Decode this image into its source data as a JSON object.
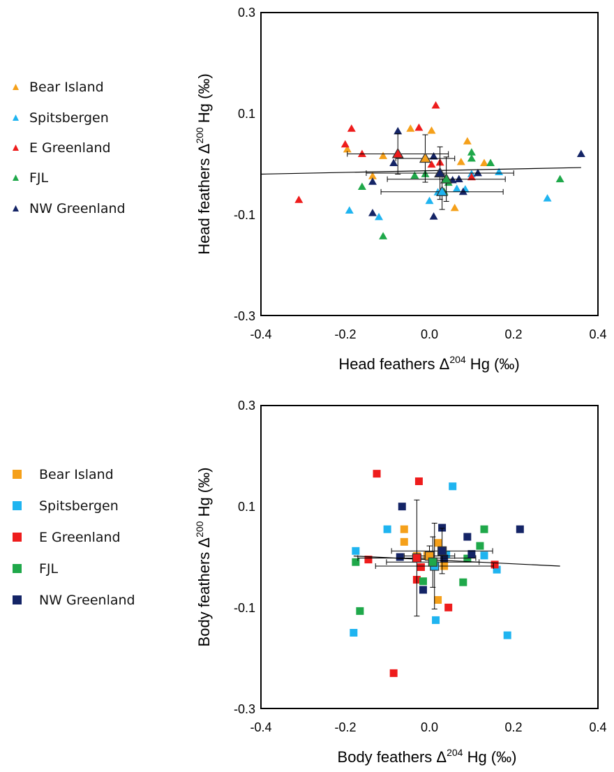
{
  "chart_data": [
    {
      "type": "scatter",
      "marker": "triangle",
      "xlabel": {
        "main": "Head feathers Δ",
        "sup": "204",
        "tail": " Hg (‰)"
      },
      "ylabel": {
        "main": "Head feathers Δ",
        "sup": "200",
        "tail": " Hg (‰)"
      },
      "xlim": [
        -0.4,
        0.4
      ],
      "ylim": [
        -0.3,
        0.3
      ],
      "xticks": [
        "-0.4",
        "-0.2",
        "0.0",
        "0.2",
        "0.4"
      ],
      "yticks": [
        "-0.3",
        "-0.1",
        "0.1",
        "0.3"
      ],
      "xtick_values": [
        -0.4,
        -0.2,
        0.0,
        0.2,
        0.4
      ],
      "ytick_values": [
        -0.3,
        -0.1,
        0.1,
        0.3
      ],
      "grid": false,
      "legend_position": "left",
      "trendline": [
        [
          -0.4,
          -0.02
        ],
        [
          0.36,
          -0.007
        ]
      ],
      "series": [
        {
          "name": "Bear Island",
          "color": "#f5a01a",
          "points": [
            [
              -0.195,
              0.029
            ],
            [
              -0.11,
              0.016
            ],
            [
              -0.045,
              0.07
            ],
            [
              0.005,
              0.066
            ],
            [
              0.09,
              0.045
            ],
            [
              0.075,
              0.004
            ],
            [
              0.13,
              0.002
            ],
            [
              -0.135,
              -0.024
            ],
            [
              0.06,
              -0.087
            ]
          ]
        },
        {
          "name": "Spitsbergen",
          "color": "#1fb4f0",
          "points": [
            [
              -0.19,
              -0.092
            ],
            [
              -0.12,
              -0.105
            ],
            [
              0.0,
              -0.073
            ],
            [
              0.02,
              -0.056
            ],
            [
              0.065,
              -0.049
            ],
            [
              0.085,
              -0.05
            ],
            [
              0.1,
              -0.02
            ],
            [
              0.165,
              -0.016
            ],
            [
              0.28,
              -0.068
            ]
          ]
        },
        {
          "name": "E Greenland",
          "color": "#ee1c1c",
          "points": [
            [
              -0.31,
              -0.071
            ],
            [
              -0.2,
              0.039
            ],
            [
              -0.185,
              0.07
            ],
            [
              -0.16,
              0.02
            ],
            [
              -0.025,
              0.072
            ],
            [
              0.015,
              0.116
            ],
            [
              0.025,
              0.003
            ],
            [
              0.005,
              -0.001
            ],
            [
              0.1,
              -0.026
            ]
          ]
        },
        {
          "name": "FJL",
          "color": "#1fa84a",
          "points": [
            [
              -0.16,
              -0.045
            ],
            [
              -0.11,
              -0.143
            ],
            [
              -0.035,
              -0.023
            ],
            [
              -0.01,
              -0.02
            ],
            [
              0.035,
              -0.055
            ],
            [
              0.045,
              -0.037
            ],
            [
              0.1,
              0.023
            ],
            [
              0.1,
              0.011
            ],
            [
              0.145,
              0.002
            ],
            [
              0.31,
              -0.03
            ]
          ]
        },
        {
          "name": "NW Greenland",
          "color": "#142466",
          "points": [
            [
              -0.135,
              -0.035
            ],
            [
              -0.135,
              -0.097
            ],
            [
              -0.085,
              0.002
            ],
            [
              -0.075,
              0.065
            ],
            [
              0.01,
              0.015
            ],
            [
              0.01,
              -0.104
            ],
            [
              0.025,
              -0.018
            ],
            [
              0.055,
              -0.032
            ],
            [
              0.07,
              -0.03
            ],
            [
              0.08,
              -0.055
            ],
            [
              0.115,
              -0.018
            ],
            [
              0.36,
              0.02
            ]
          ]
        }
      ],
      "means": [
        {
          "series": "Bear Island",
          "x": -0.01,
          "y": 0.011,
          "xerr": 0.07,
          "yerr": 0.047
        },
        {
          "series": "Spitsbergen",
          "x": 0.03,
          "y": -0.055,
          "xerr": 0.145,
          "yerr": 0.035
        },
        {
          "series": "E Greenland",
          "x": -0.075,
          "y": 0.02,
          "xerr": 0.12,
          "yerr": 0.04
        },
        {
          "series": "FJL",
          "x": 0.04,
          "y": -0.03,
          "xerr": 0.14,
          "yerr": 0.044
        },
        {
          "series": "NW Greenland",
          "x": 0.025,
          "y": -0.018,
          "xerr": 0.175,
          "yerr": 0.052
        }
      ]
    },
    {
      "type": "scatter",
      "marker": "square",
      "xlabel": {
        "main": "Body feathers Δ",
        "sup": "204",
        "tail": " Hg (‰)"
      },
      "ylabel": {
        "main": "Body feathers Δ",
        "sup": "200",
        "tail": " Hg (‰)"
      },
      "xlim": [
        -0.4,
        0.4
      ],
      "ylim": [
        -0.3,
        0.3
      ],
      "xticks": [
        "-0.4",
        "-0.2",
        "0.0",
        "0.2",
        "0.4"
      ],
      "yticks": [
        "-0.3",
        "-0.1",
        "0.1",
        "0.3"
      ],
      "xtick_values": [
        -0.4,
        -0.2,
        0.0,
        0.2,
        0.4
      ],
      "ytick_values": [
        -0.3,
        -0.1,
        0.1,
        0.3
      ],
      "grid": false,
      "legend_position": "left",
      "trendline": [
        [
          -0.18,
          0.002
        ],
        [
          0.31,
          -0.018
        ]
      ],
      "series": [
        {
          "name": "Bear Island",
          "color": "#f5a01a",
          "points": [
            [
              -0.06,
              0.055
            ],
            [
              -0.06,
              0.03
            ],
            [
              -0.03,
              0.002
            ],
            [
              0.02,
              0.028
            ],
            [
              0.035,
              -0.018
            ],
            [
              0.02,
              -0.085
            ],
            [
              -0.005,
              0.003
            ]
          ]
        },
        {
          "name": "Spitsbergen",
          "color": "#1fb4f0",
          "points": [
            [
              0.055,
              0.14
            ],
            [
              -0.1,
              0.055
            ],
            [
              -0.175,
              0.012
            ],
            [
              -0.18,
              -0.15
            ],
            [
              0.015,
              -0.125
            ],
            [
              0.13,
              0.003
            ],
            [
              0.16,
              -0.025
            ],
            [
              0.185,
              -0.155
            ],
            [
              0.04,
              0.005
            ]
          ]
        },
        {
          "name": "E Greenland",
          "color": "#ee1c1c",
          "points": [
            [
              -0.125,
              0.165
            ],
            [
              -0.025,
              0.15
            ],
            [
              -0.145,
              -0.005
            ],
            [
              -0.03,
              -0.045
            ],
            [
              -0.02,
              -0.02
            ],
            [
              0.045,
              -0.1
            ],
            [
              -0.085,
              -0.23
            ],
            [
              0.155,
              -0.015
            ]
          ]
        },
        {
          "name": "FJL",
          "color": "#1fa84a",
          "points": [
            [
              0.13,
              0.055
            ],
            [
              0.12,
              0.022
            ],
            [
              0.09,
              -0.003
            ],
            [
              0.08,
              -0.05
            ],
            [
              -0.015,
              -0.048
            ],
            [
              -0.175,
              -0.01
            ],
            [
              -0.165,
              -0.107
            ]
          ]
        },
        {
          "name": "NW Greenland",
          "color": "#142466",
          "points": [
            [
              -0.065,
              0.1
            ],
            [
              0.03,
              0.058
            ],
            [
              0.09,
              0.04
            ],
            [
              0.1,
              0.006
            ],
            [
              0.215,
              0.055
            ],
            [
              -0.07,
              0.0
            ],
            [
              -0.015,
              -0.065
            ],
            [
              0.035,
              -0.003
            ]
          ]
        }
      ],
      "means": [
        {
          "series": "Bear Island",
          "x": 0.0,
          "y": 0.002,
          "xerr": 0.06,
          "yerr": 0.02
        },
        {
          "series": "Spitsbergen",
          "x": 0.012,
          "y": -0.018,
          "xerr": 0.14,
          "yerr": 0.085
        },
        {
          "series": "E Greenland",
          "x": -0.03,
          "y": -0.002,
          "xerr": 0.14,
          "yerr": 0.115
        },
        {
          "series": "FJL",
          "x": 0.008,
          "y": -0.01,
          "xerr": 0.11,
          "yerr": 0.05
        },
        {
          "series": "NW Greenland",
          "x": 0.03,
          "y": 0.012,
          "xerr": 0.12,
          "yerr": 0.045
        }
      ]
    }
  ]
}
